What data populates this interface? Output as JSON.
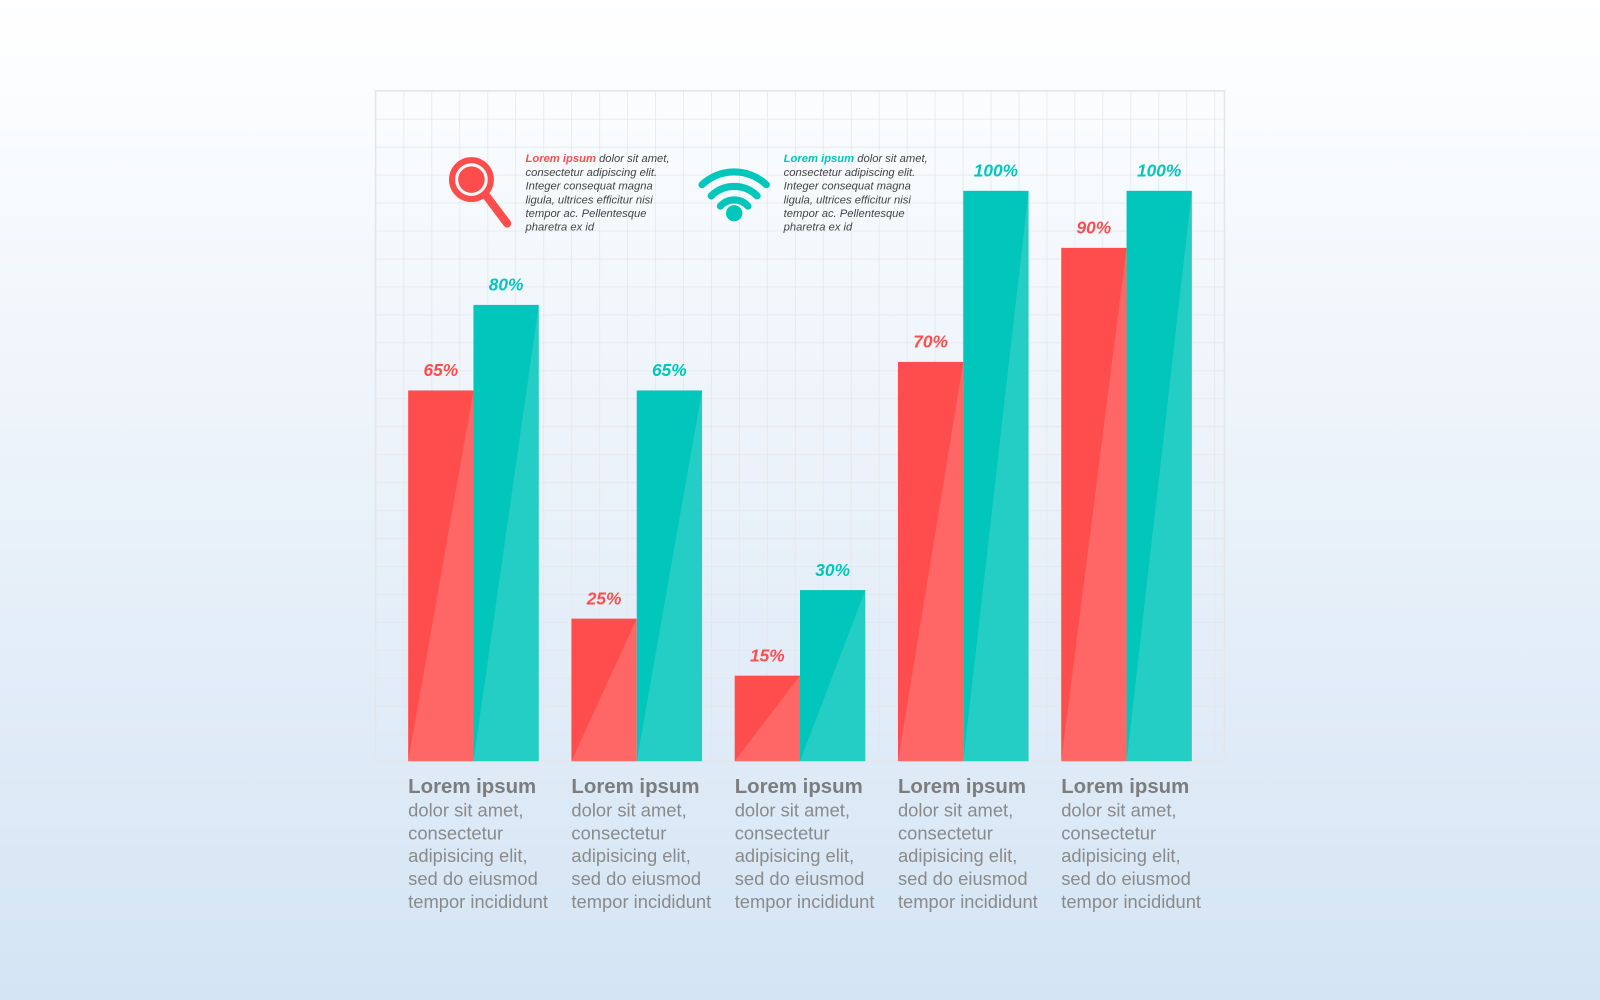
{
  "chart_data": {
    "type": "bar",
    "categories": [
      "Lorem ipsum",
      "Lorem ipsum",
      "Lorem ipsum",
      "Lorem ipsum",
      "Lorem ipsum"
    ],
    "descriptions": [
      [
        "dolor sit amet,",
        "consectetur",
        "adipisicing elit,",
        "sed do eiusmod",
        "tempor incididunt"
      ],
      [
        "dolor sit amet,",
        "consectetur",
        "adipisicing elit,",
        "sed do eiusmod",
        "tempor incididunt"
      ],
      [
        "dolor sit amet,",
        "consectetur",
        "adipisicing elit,",
        "sed do eiusmod",
        "tempor incididunt"
      ],
      [
        "dolor sit amet,",
        "consectetur",
        "adipisicing elit,",
        "sed do eiusmod",
        "tempor incididunt"
      ],
      [
        "dolor sit amet,",
        "consectetur",
        "adipisicing elit,",
        "sed do eiusmod",
        "tempor incididunt"
      ]
    ],
    "series": [
      {
        "color": "#ff4d4d",
        "values": [
          65,
          25,
          15,
          70,
          90
        ],
        "value_labels": [
          "65%",
          "25%",
          "15%",
          "70%",
          "90%"
        ]
      },
      {
        "color": "#00c6bb",
        "values": [
          80,
          65,
          30,
          100,
          100
        ],
        "value_labels": [
          "80%",
          "65%",
          "30%",
          "100%",
          "100%"
        ]
      }
    ],
    "annotations": [
      {
        "title": "Lorem ipsum",
        "color": "#ff4d4d",
        "lines": [
          " dolor sit amet,",
          "consectetur adipiscing elit.",
          "Integer consequat magna",
          "ligula, ultrices efficitur nisi",
          "tempor ac. Pellentesque",
          "pharetra ex id"
        ]
      },
      {
        "title": "Lorem ipsum",
        "color": "#00c6bb",
        "lines": [
          " dolor sit amet,",
          "consectetur adipiscing elit.",
          "Integer consequat magna",
          "ligula, ultrices efficitur nisi",
          "tempor ac. Pellentesque",
          "pharetra ex id"
        ]
      }
    ]
  }
}
